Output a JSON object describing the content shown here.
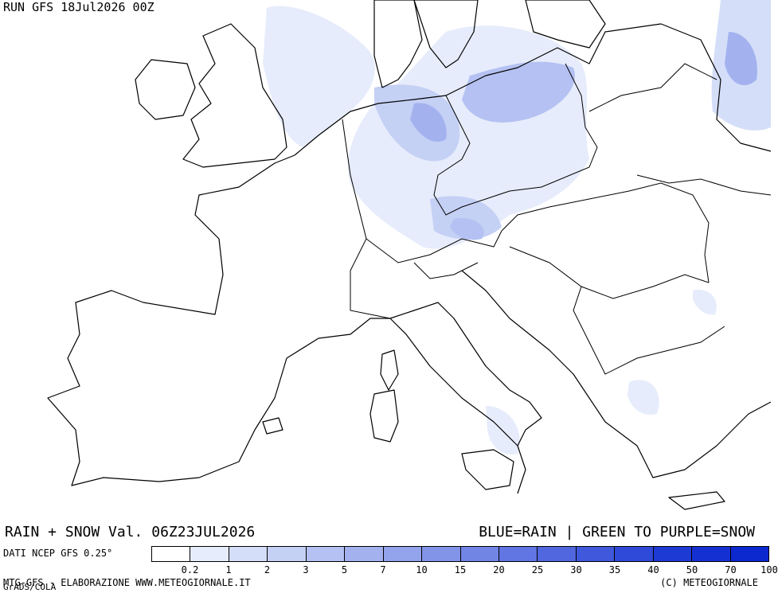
{
  "header": {
    "run_label": "RUN GFS 18Jul2026 00Z",
    "title_left": "RAIN + SNOW Val. 06Z23JUL2026",
    "title_right": "BLUE=RAIN | GREEN TO PURPLE=SNOW"
  },
  "legend": {
    "source_label": "DATI NCEP GFS 0.25°",
    "colors": [
      "#ffffff",
      "#e6ecfb",
      "#d5def8",
      "#c5d0f5",
      "#b4c1f2",
      "#a3b2ef",
      "#93a3ec",
      "#8294e8",
      "#7185e5",
      "#6176e2",
      "#5067df",
      "#3f58dc",
      "#2f49d8",
      "#1e3ad5",
      "#1530d2",
      "#0c28cf"
    ],
    "ticks": [
      "0.2",
      "1",
      "2",
      "3",
      "5",
      "7",
      "10",
      "15",
      "20",
      "25",
      "30",
      "35",
      "40",
      "50",
      "70",
      "100"
    ]
  },
  "footer": {
    "left": "MTG-GFS - ELABORAZIONE WWW.METEOGIORNALE.IT",
    "grads": "GrADS/COLA",
    "right": "(C) METEOGIORNALE"
  }
}
